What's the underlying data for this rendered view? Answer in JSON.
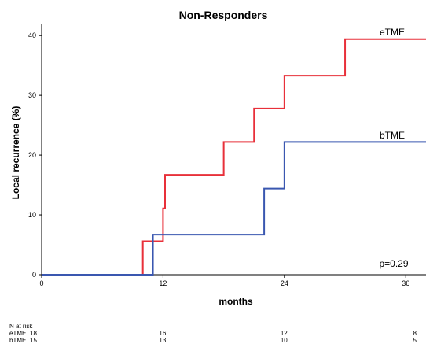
{
  "chart_data": {
    "type": "line",
    "step": true,
    "title": "Non-Responders",
    "xlabel": "months",
    "ylabel": "Local recurrence (%)",
    "xlim": [
      0,
      38
    ],
    "ylim": [
      0,
      42
    ],
    "xticks": [
      0,
      12,
      24,
      36
    ],
    "yticks": [
      0,
      10,
      20,
      30,
      40
    ],
    "grid": false,
    "series": [
      {
        "name": "eTME",
        "color": "#e8303a",
        "x": [
          0,
          10,
          12,
          12.2,
          18,
          21,
          24,
          30,
          38
        ],
        "y": [
          0,
          5.6,
          11.1,
          16.7,
          22.2,
          27.8,
          33.3,
          39.4,
          39.4
        ]
      },
      {
        "name": "bTME",
        "color": "#3a57b0",
        "x": [
          0,
          11,
          22,
          24,
          38
        ],
        "y": [
          0,
          6.7,
          14.4,
          22.2,
          22.2
        ]
      }
    ],
    "annotation": "p=0.29",
    "risk_table": {
      "header": "N at risk",
      "timepoints": [
        0,
        12,
        24,
        36
      ],
      "rows": [
        {
          "name": "eTME",
          "values": [
            "18",
            "16",
            "12",
            "8"
          ]
        },
        {
          "name": "bTME",
          "values": [
            "15",
            "13",
            "10",
            "5"
          ]
        }
      ]
    }
  }
}
